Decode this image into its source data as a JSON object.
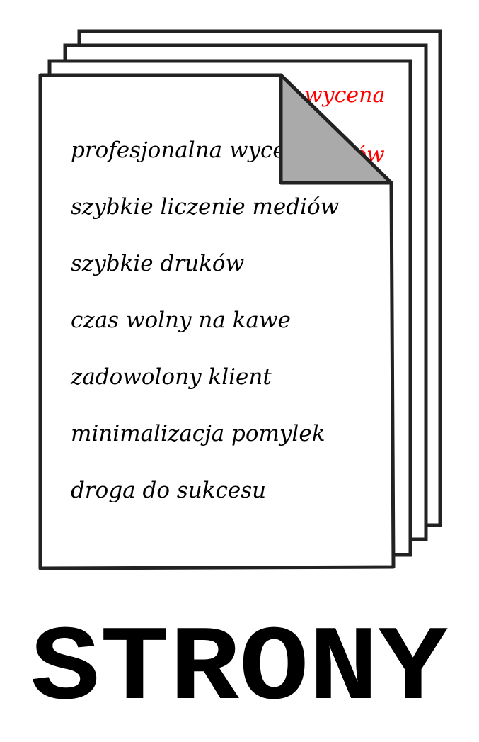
{
  "back_page_peek": {
    "line1": "wycena",
    "line2": "ów",
    "color": "#ff0000"
  },
  "front_page": {
    "items": [
      "profesjonalna wyce",
      "szybkie liczenie mediów",
      "szybkie druków",
      "czas wolny na kawe",
      "zadowolony klient",
      "minimalizacja pomylek",
      "droga do sukcesu"
    ],
    "text_color": "#000000",
    "fold_color": "#aaaaaa",
    "page_color": "#ffffff",
    "outline_color": "#222222"
  },
  "title": "STRONY"
}
